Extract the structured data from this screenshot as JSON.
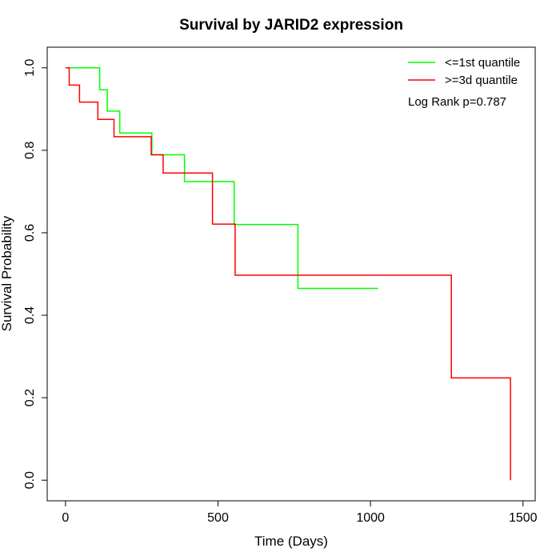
{
  "chart_data": {
    "type": "line",
    "step": true,
    "title": "Survival by JARID2 expression",
    "xlabel": "Time (Days)",
    "ylabel": "Survival Probability",
    "xlim": [
      -60,
      1540
    ],
    "ylim": [
      -0.05,
      1.05
    ],
    "xticks": [
      0,
      500,
      1000,
      1500
    ],
    "yticks": [
      0.0,
      0.2,
      0.4,
      0.6,
      0.8,
      1.0
    ],
    "xtick_labels": [
      "0",
      "500",
      "1000",
      "1500"
    ],
    "ytick_labels": [
      "0.0",
      "0.2",
      "0.4",
      "0.6",
      "0.8",
      "1.0"
    ],
    "grid": false,
    "legend_position": "top-right",
    "annotation": "Log Rank p=0.787",
    "series": [
      {
        "name": "<=1st quantile",
        "color": "#00ff00",
        "x": [
          0,
          112,
          137,
          178,
          283,
          390,
          553,
          762,
          1025
        ],
        "y": [
          1.0,
          0.947,
          0.895,
          0.842,
          0.789,
          0.724,
          0.62,
          0.465,
          0.465
        ]
      },
      {
        "name": ">=3d quantile",
        "color": "#ff0000",
        "x": [
          0,
          12,
          46,
          106,
          159,
          281,
          320,
          482,
          556,
          1265,
          1459
        ],
        "y": [
          1.0,
          0.958,
          0.917,
          0.875,
          0.833,
          0.789,
          0.745,
          0.621,
          0.497,
          0.248,
          0.0
        ]
      }
    ]
  }
}
